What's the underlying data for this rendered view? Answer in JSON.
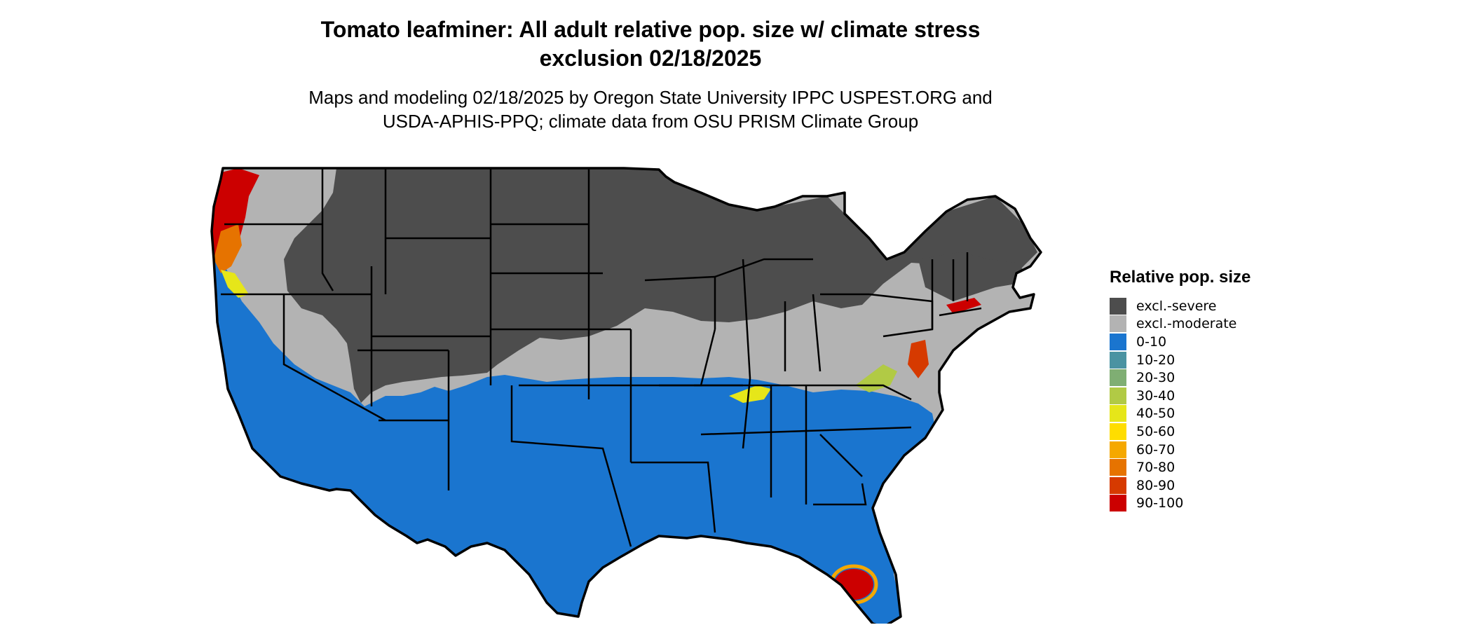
{
  "title_line1": "Tomato leafminer: All adult relative pop. size w/ climate stress",
  "title_line2": "exclusion 02/18/2025",
  "subtitle_line1": "Maps and modeling 02/18/2025 by Oregon State University IPPC USPEST.ORG and",
  "subtitle_line2": "USDA-APHIS-PPQ; climate data from OSU PRISM Climate Group",
  "legend": {
    "title": "Relative pop. size",
    "items": [
      {
        "label": "excl.-severe",
        "color": "#4d4d4d"
      },
      {
        "label": "excl.-moderate",
        "color": "#b3b3b3"
      },
      {
        "label": "0-10",
        "color": "#1a75cf"
      },
      {
        "label": "10-20",
        "color": "#4a93a2"
      },
      {
        "label": "20-30",
        "color": "#7fae73"
      },
      {
        "label": "30-40",
        "color": "#b1ca45"
      },
      {
        "label": "40-50",
        "color": "#e6e619"
      },
      {
        "label": "50-60",
        "color": "#ffdd00"
      },
      {
        "label": "60-70",
        "color": "#f5a800"
      },
      {
        "label": "70-80",
        "color": "#e67300"
      },
      {
        "label": "80-90",
        "color": "#d63a00"
      },
      {
        "label": "90-100",
        "color": "#cc0000"
      }
    ]
  }
}
